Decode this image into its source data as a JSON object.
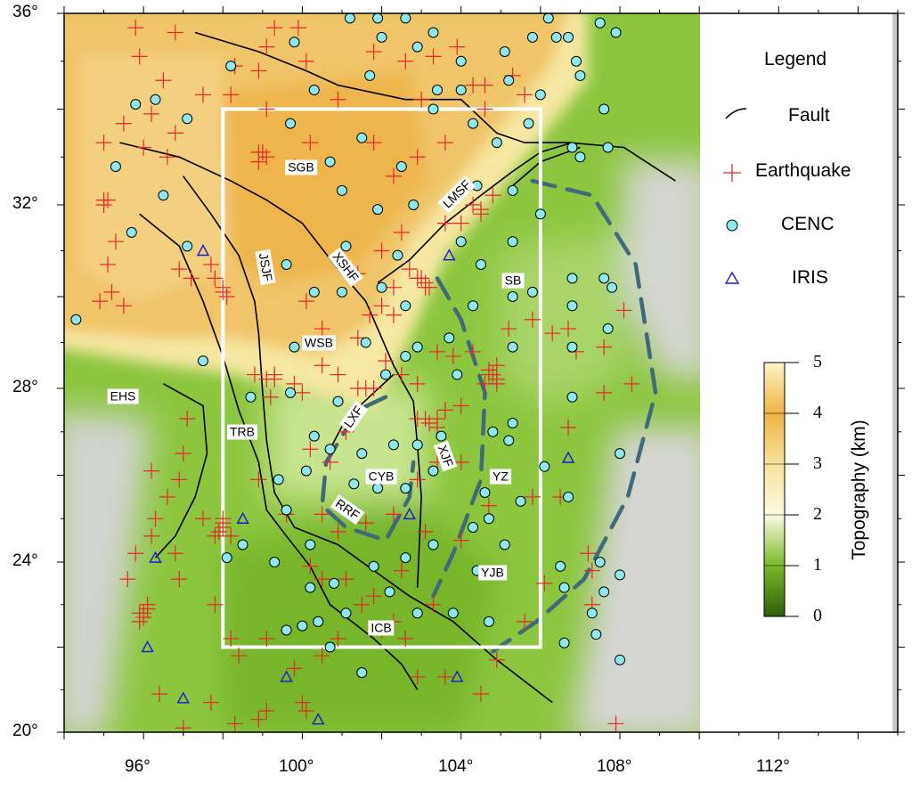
{
  "legend": {
    "title": "Legend",
    "items": [
      {
        "label": "Fault",
        "symbol": "black-arc"
      },
      {
        "label": "Earthquake",
        "symbol": "red-plus"
      },
      {
        "label": "CENC",
        "symbol": "cyan-circle"
      },
      {
        "label": "IRIS",
        "symbol": "blue-triangle"
      }
    ]
  },
  "colorbar": {
    "title": "Topography (km)",
    "ticks": [
      "0",
      "1",
      "2",
      "3",
      "4",
      "5"
    ],
    "colors": [
      "#2f5e0a",
      "#7ab82a",
      "#fbfbe0",
      "#f7d98a",
      "#f0b040",
      "#fdf3c8"
    ]
  },
  "axes": {
    "lon_ticks": [
      "96°",
      "100°",
      "104°",
      "108°",
      "112°"
    ],
    "lat_ticks": [
      "20°",
      "24°",
      "28°",
      "32°",
      "36°"
    ],
    "lon_range": [
      94,
      115
    ],
    "lat_range": [
      20,
      36
    ],
    "map_lon_extent": [
      94,
      110
    ]
  },
  "colors": {
    "earthquake": "#e8262a",
    "cenc_fill": "#8fe8ef",
    "iris": "#1a1ad0",
    "region": "#ffffff",
    "dashed_zone": "#3f6a7a",
    "fault": "#000000"
  },
  "study_region": {
    "lon": [
      98,
      106
    ],
    "lat": [
      22,
      34
    ]
  },
  "labels": {
    "SGB": "SGB",
    "LMSF": "LMSF",
    "XSHF": "XSHF",
    "JSJF": "JSJF",
    "SB": "SB",
    "WSB": "WSB",
    "EHS": "EHS",
    "LXF": "LXF",
    "TRB": "TRB",
    "XJF": "XJF",
    "CYB": "CYB",
    "YZ": "YZ",
    "RRF": "RRF",
    "YJB": "YJB",
    "ICB": "ICB"
  },
  "faults": [
    [
      [
        97.3,
        35.6
      ],
      [
        98.9,
        35.2
      ],
      [
        100.1,
        34.8
      ],
      [
        100.9,
        34.5
      ],
      [
        102.6,
        34.2
      ],
      [
        103.4,
        34.2
      ],
      [
        104.0,
        34.2
      ],
      [
        104.9,
        33.5
      ],
      [
        105.6,
        33.3
      ],
      [
        106.7,
        33.3
      ],
      [
        108.1,
        33.2
      ],
      [
        109.4,
        32.5
      ]
    ],
    [
      [
        95.4,
        33.3
      ],
      [
        96.9,
        33.0
      ],
      [
        98.2,
        32.5
      ],
      [
        99.1,
        32.1
      ],
      [
        100.0,
        31.6
      ],
      [
        100.9,
        30.6
      ],
      [
        101.6,
        29.9
      ],
      [
        101.9,
        29.3
      ],
      [
        102.3,
        28.5
      ],
      [
        102.8,
        27.7
      ],
      [
        102.9,
        26.7
      ],
      [
        103.0,
        25.5
      ],
      [
        102.9,
        23.4
      ]
    ],
    [
      [
        101.9,
        30.3
      ],
      [
        102.7,
        30.8
      ],
      [
        103.6,
        31.6
      ],
      [
        104.5,
        32.2
      ],
      [
        105.3,
        32.7
      ],
      [
        106.0,
        33.1
      ],
      [
        106.8,
        33.3
      ]
    ],
    [
      [
        97.0,
        32.6
      ],
      [
        97.7,
        31.8
      ],
      [
        98.4,
        30.9
      ],
      [
        98.8,
        29.9
      ],
      [
        98.9,
        29.2
      ],
      [
        99.0,
        27.9
      ],
      [
        99.1,
        26.8
      ],
      [
        99.3,
        25.6
      ],
      [
        99.8,
        24.8
      ],
      [
        100.9,
        24.4
      ],
      [
        101.8,
        23.8
      ],
      [
        102.7,
        23.2
      ],
      [
        103.8,
        22.6
      ],
      [
        104.9,
        21.7
      ],
      [
        106.3,
        20.7
      ]
    ],
    [
      [
        95.9,
        31.8
      ],
      [
        96.9,
        31.1
      ],
      [
        97.5,
        29.9
      ],
      [
        98.0,
        28.7
      ],
      [
        98.4,
        27.5
      ],
      [
        98.9,
        26.3
      ],
      [
        99.1,
        25.2
      ],
      [
        99.6,
        24.6
      ],
      [
        100.2,
        23.9
      ],
      [
        100.7,
        23.0
      ],
      [
        101.8,
        22.2
      ],
      [
        102.5,
        21.6
      ],
      [
        102.9,
        21.0
      ]
    ],
    [
      [
        96.5,
        28.1
      ],
      [
        97.5,
        27.6
      ],
      [
        97.6,
        26.5
      ],
      [
        97.3,
        25.5
      ],
      [
        96.8,
        24.6
      ],
      [
        96.3,
        24.1
      ]
    ],
    [
      [
        100.7,
        26.6
      ],
      [
        101.1,
        27.3
      ],
      [
        101.8,
        27.9
      ],
      [
        102.3,
        28.3
      ]
    ],
    [
      [
        105.3,
        32.4
      ],
      [
        106.0,
        32.9
      ],
      [
        107.0,
        33.2
      ]
    ]
  ],
  "dashed_zones": [
    [
      [
        105.8,
        32.5
      ],
      [
        107.3,
        32.2
      ],
      [
        108.4,
        30.7
      ],
      [
        108.9,
        27.9
      ],
      [
        108.2,
        25.5
      ],
      [
        107.1,
        23.6
      ],
      [
        105.9,
        22.6
      ],
      [
        104.8,
        21.9
      ]
    ],
    [
      [
        103.4,
        30.4
      ],
      [
        104.0,
        29.5
      ],
      [
        104.6,
        27.9
      ],
      [
        104.5,
        25.9
      ],
      [
        103.8,
        24.2
      ],
      [
        103.3,
        23.2
      ]
    ],
    [
      [
        102.1,
        27.8
      ],
      [
        101.4,
        27.5
      ],
      [
        100.6,
        26.3
      ],
      [
        100.5,
        25.3
      ],
      [
        101.1,
        24.8
      ],
      [
        102.1,
        24.5
      ],
      [
        102.7,
        25.5
      ],
      [
        102.8,
        26.3
      ]
    ]
  ],
  "earthquakes": [
    [
      95.8,
      35.7
    ],
    [
      96.8,
      35.6
    ],
    [
      95.9,
      35.1
    ],
    [
      96.5,
      34.6
    ],
    [
      97.5,
      34.3
    ],
    [
      98.2,
      34.3
    ],
    [
      99.1,
      35.3
    ],
    [
      99.3,
      35.7
    ],
    [
      99.9,
      35.7
    ],
    [
      98.3,
      34.9
    ],
    [
      98.9,
      34.8
    ],
    [
      100.1,
      35.0
    ],
    [
      101.8,
      35.2
    ],
    [
      102.6,
      35.0
    ],
    [
      103.3,
      35.1
    ],
    [
      103.9,
      35.3
    ],
    [
      104.3,
      34.5
    ],
    [
      104.6,
      34.0
    ],
    [
      105.3,
      34.7
    ],
    [
      105.6,
      34.3
    ],
    [
      100.9,
      34.2
    ],
    [
      103.0,
      34.2
    ],
    [
      95.5,
      33.7
    ],
    [
      96.2,
      33.9
    ],
    [
      96.8,
      33.5
    ],
    [
      96.0,
      33.2
    ],
    [
      96.6,
      33.0
    ],
    [
      95.0,
      33.3
    ],
    [
      95.1,
      32.1
    ],
    [
      95.0,
      32.0
    ],
    [
      95.3,
      31.2
    ],
    [
      95.1,
      30.7
    ],
    [
      95.2,
      30.1
    ],
    [
      95.5,
      29.8
    ],
    [
      94.9,
      29.9
    ],
    [
      96.9,
      30.6
    ],
    [
      97.2,
      30.4
    ],
    [
      97.8,
      30.4
    ],
    [
      98.0,
      30.2
    ],
    [
      97.7,
      30.7
    ],
    [
      98.9,
      33.1
    ],
    [
      98.9,
      32.9
    ],
    [
      99.1,
      34.0
    ],
    [
      99.8,
      32.8
    ],
    [
      100.2,
      33.3
    ],
    [
      101.8,
      33.3
    ],
    [
      102.3,
      32.6
    ],
    [
      102.9,
      33.0
    ],
    [
      103.6,
      33.3
    ],
    [
      104.3,
      32.0
    ],
    [
      104.5,
      31.8
    ],
    [
      104.8,
      32.2
    ],
    [
      104.0,
      31.6
    ],
    [
      103.6,
      31.6
    ],
    [
      102.9,
      30.4
    ],
    [
      103.1,
      30.2
    ],
    [
      102.7,
      30.6
    ],
    [
      102.3,
      30.2
    ],
    [
      102.0,
      29.8
    ],
    [
      101.7,
      29.6
    ],
    [
      101.4,
      29.1
    ],
    [
      100.9,
      28.3
    ],
    [
      101.4,
      28.0
    ],
    [
      101.6,
      28.0
    ],
    [
      102.1,
      28.6
    ],
    [
      102.5,
      28.3
    ],
    [
      102.9,
      28.1
    ],
    [
      103.8,
      28.7
    ],
    [
      104.3,
      28.8
    ],
    [
      104.7,
      28.3
    ],
    [
      104.8,
      28.3
    ],
    [
      104.9,
      28.5
    ],
    [
      104.9,
      28.1
    ],
    [
      104.6,
      28.1
    ],
    [
      105.2,
      29.3
    ],
    [
      105.8,
      29.5
    ],
    [
      106.3,
      29.2
    ],
    [
      106.7,
      29.3
    ],
    [
      106.9,
      28.8
    ],
    [
      103.4,
      28.8
    ],
    [
      102.9,
      27.3
    ],
    [
      103.1,
      27.3
    ],
    [
      103.4,
      27.3
    ],
    [
      103.6,
      27.5
    ],
    [
      104.0,
      27.6
    ],
    [
      98.8,
      28.3
    ],
    [
      99.1,
      28.2
    ],
    [
      99.3,
      28.3
    ],
    [
      99.2,
      27.8
    ],
    [
      99.8,
      28.1
    ],
    [
      100.0,
      27.9
    ],
    [
      100.5,
      28.5
    ],
    [
      100.1,
      29.9
    ],
    [
      100.5,
      29.3
    ],
    [
      101.4,
      30.5
    ],
    [
      102.0,
      31.0
    ],
    [
      102.5,
      31.4
    ],
    [
      101.1,
      27.0
    ],
    [
      100.7,
      26.3
    ],
    [
      100.2,
      26.6
    ],
    [
      98.9,
      25.9
    ],
    [
      99.6,
      25.1
    ],
    [
      100.5,
      25.1
    ],
    [
      100.9,
      24.7
    ],
    [
      101.6,
      24.9
    ],
    [
      101.1,
      23.6
    ],
    [
      100.5,
      23.6
    ],
    [
      100.2,
      23.9
    ],
    [
      101.5,
      23.0
    ],
    [
      101.8,
      23.2
    ],
    [
      102.3,
      22.6
    ],
    [
      100.9,
      22.2
    ],
    [
      100.5,
      21.8
    ],
    [
      99.8,
      21.5
    ],
    [
      100.0,
      20.7
    ],
    [
      100.1,
      20.5
    ],
    [
      99.1,
      20.5
    ],
    [
      98.9,
      20.3
    ],
    [
      98.3,
      20.2
    ],
    [
      97.7,
      20.7
    ],
    [
      97.0,
      20.1
    ],
    [
      96.4,
      20.9
    ],
    [
      96.0,
      22.8
    ],
    [
      95.9,
      22.8
    ],
    [
      96.1,
      23.0
    ],
    [
      95.6,
      23.6
    ],
    [
      95.8,
      24.2
    ],
    [
      96.2,
      24.6
    ],
    [
      96.3,
      25.0
    ],
    [
      96.6,
      25.5
    ],
    [
      96.9,
      25.9
    ],
    [
      97.0,
      26.5
    ],
    [
      97.1,
      27.3
    ],
    [
      97.5,
      25.0
    ],
    [
      97.8,
      24.6
    ],
    [
      98.0,
      24.8
    ],
    [
      98.2,
      24.6
    ],
    [
      98.0,
      25.0
    ],
    [
      96.9,
      23.6
    ],
    [
      96.8,
      24.2
    ],
    [
      96.2,
      26.1
    ],
    [
      97.8,
      23.0
    ],
    [
      98.2,
      22.2
    ],
    [
      98.4,
      21.8
    ],
    [
      99.1,
      22.2
    ],
    [
      102.0,
      22.4
    ],
    [
      102.6,
      22.2
    ],
    [
      102.9,
      21.3
    ],
    [
      103.6,
      21.3
    ],
    [
      104.5,
      20.9
    ],
    [
      104.9,
      21.7
    ],
    [
      105.6,
      22.6
    ],
    [
      106.1,
      23.5
    ],
    [
      105.8,
      25.5
    ],
    [
      106.5,
      25.5
    ],
    [
      106.7,
      27.1
    ],
    [
      107.2,
      24.2
    ],
    [
      107.3,
      23.8
    ],
    [
      107.9,
      20.2
    ],
    [
      108.3,
      28.1
    ],
    [
      107.6,
      28.9
    ],
    [
      108.1,
      29.7
    ],
    [
      107.6,
      27.9
    ],
    [
      103.1,
      24.7
    ],
    [
      104.0,
      24.5
    ],
    [
      104.7,
      25.3
    ],
    [
      104.0,
      26.3
    ],
    [
      103.4,
      26.3
    ],
    [
      102.9,
      25.9
    ],
    [
      102.3,
      25.1
    ],
    [
      102.5,
      23.8
    ],
    [
      103.3,
      23.0
    ],
    [
      107.3,
      23.0
    ],
    [
      103.1,
      30.3
    ],
    [
      103.0,
      30.4
    ],
    [
      103.2,
      30.2
    ],
    [
      104.7,
      28.4
    ],
    [
      104.9,
      28.2
    ],
    [
      96.0,
      22.7
    ],
    [
      95.9,
      22.6
    ],
    [
      96.1,
      22.9
    ],
    [
      98.0,
      24.9
    ],
    [
      97.9,
      24.7
    ],
    [
      103.2,
      27.2
    ],
    [
      103.4,
      27.1
    ],
    [
      104.5,
      31.9
    ],
    [
      104.6,
      34.5
    ],
    [
      99.1,
      33.0
    ],
    [
      99.0,
      33.1
    ],
    [
      95.0,
      32.1
    ],
    [
      98.0,
      30.1
    ],
    [
      98.1,
      30.0
    ],
    [
      99.3,
      28.2
    ],
    [
      102.3,
      29.6
    ],
    [
      101.8,
      28.0
    ]
  ],
  "cenc_stations": [
    [
      98.2,
      34.9
    ],
    [
      99.8,
      35.4
    ],
    [
      101.2,
      35.9
    ],
    [
      101.9,
      35.9
    ],
    [
      102.6,
      35.9
    ],
    [
      103.3,
      35.6
    ],
    [
      102.0,
      35.5
    ],
    [
      102.9,
      35.3
    ],
    [
      101.7,
      34.7
    ],
    [
      104.0,
      35.0
    ],
    [
      105.1,
      35.2
    ],
    [
      105.8,
      35.5
    ],
    [
      106.2,
      35.9
    ],
    [
      106.4,
      35.5
    ],
    [
      106.7,
      35.5
    ],
    [
      106.9,
      35.0
    ],
    [
      107.5,
      35.8
    ],
    [
      107.9,
      35.6
    ],
    [
      107.0,
      34.7
    ],
    [
      106.0,
      34.3
    ],
    [
      105.2,
      34.6
    ],
    [
      104.0,
      34.4
    ],
    [
      100.3,
      34.4
    ],
    [
      103.4,
      34.4
    ],
    [
      97.1,
      33.8
    ],
    [
      99.7,
      33.7
    ],
    [
      101.5,
      33.4
    ],
    [
      102.5,
      32.8
    ],
    [
      100.7,
      32.9
    ],
    [
      103.3,
      34.0
    ],
    [
      104.3,
      33.7
    ],
    [
      104.9,
      33.3
    ],
    [
      105.7,
      33.7
    ],
    [
      106.8,
      33.2
    ],
    [
      107.0,
      33.0
    ],
    [
      107.6,
      34.0
    ],
    [
      107.7,
      33.2
    ],
    [
      95.3,
      32.8
    ],
    [
      96.5,
      32.2
    ],
    [
      95.7,
      31.4
    ],
    [
      97.1,
      31.1
    ],
    [
      101.0,
      32.3
    ],
    [
      101.9,
      31.9
    ],
    [
      102.8,
      32.0
    ],
    [
      104.4,
      32.4
    ],
    [
      105.3,
      32.3
    ],
    [
      106.0,
      31.8
    ],
    [
      105.3,
      31.2
    ],
    [
      104.0,
      31.2
    ],
    [
      104.5,
      30.7
    ],
    [
      102.4,
      30.9
    ],
    [
      101.1,
      31.1
    ],
    [
      99.6,
      30.7
    ],
    [
      100.3,
      30.1
    ],
    [
      101.0,
      30.1
    ],
    [
      102.0,
      30.2
    ],
    [
      102.6,
      29.8
    ],
    [
      104.3,
      29.8
    ],
    [
      105.3,
      30.0
    ],
    [
      105.8,
      30.1
    ],
    [
      106.8,
      30.4
    ],
    [
      107.6,
      30.4
    ],
    [
      107.8,
      30.2
    ],
    [
      107.7,
      29.3
    ],
    [
      106.8,
      29.8
    ],
    [
      106.8,
      28.9
    ],
    [
      105.3,
      28.9
    ],
    [
      103.7,
      29.1
    ],
    [
      102.9,
      28.9
    ],
    [
      103.9,
      28.3
    ],
    [
      99.8,
      28.9
    ],
    [
      101.6,
      29.0
    ],
    [
      102.1,
      28.3
    ],
    [
      102.6,
      28.7
    ],
    [
      97.5,
      28.6
    ],
    [
      98.7,
      27.8
    ],
    [
      99.7,
      27.9
    ],
    [
      100.9,
      27.7
    ],
    [
      100.3,
      26.9
    ],
    [
      100.7,
      26.6
    ],
    [
      101.5,
      26.5
    ],
    [
      102.3,
      26.7
    ],
    [
      102.9,
      26.7
    ],
    [
      103.5,
      26.9
    ],
    [
      104.8,
      27.0
    ],
    [
      105.3,
      27.2
    ],
    [
      106.8,
      27.8
    ],
    [
      108.0,
      26.5
    ],
    [
      106.1,
      26.2
    ],
    [
      105.2,
      26.8
    ],
    [
      100.1,
      26.1
    ],
    [
      101.3,
      25.8
    ],
    [
      101.9,
      25.7
    ],
    [
      102.6,
      25.7
    ],
    [
      103.3,
      26.1
    ],
    [
      104.6,
      25.6
    ],
    [
      104.7,
      25.0
    ],
    [
      105.5,
      25.4
    ],
    [
      106.7,
      25.5
    ],
    [
      99.4,
      25.9
    ],
    [
      99.6,
      25.2
    ],
    [
      98.5,
      24.4
    ],
    [
      100.2,
      24.4
    ],
    [
      99.3,
      24.0
    ],
    [
      98.1,
      24.1
    ],
    [
      100.2,
      23.4
    ],
    [
      100.8,
      23.5
    ],
    [
      101.8,
      23.9
    ],
    [
      102.6,
      24.1
    ],
    [
      103.3,
      24.4
    ],
    [
      104.3,
      24.8
    ],
    [
      104.4,
      23.8
    ],
    [
      105.1,
      24.4
    ],
    [
      106.5,
      23.9
    ],
    [
      106.6,
      23.4
    ],
    [
      107.5,
      24.0
    ],
    [
      107.6,
      23.3
    ],
    [
      108.0,
      23.7
    ],
    [
      107.3,
      22.8
    ],
    [
      107.4,
      22.3
    ],
    [
      106.6,
      22.1
    ],
    [
      108.0,
      21.7
    ],
    [
      104.7,
      22.6
    ],
    [
      103.8,
      22.8
    ],
    [
      102.9,
      22.8
    ],
    [
      102.2,
      23.3
    ],
    [
      101.1,
      22.8
    ],
    [
      100.4,
      22.6
    ],
    [
      100.0,
      22.5
    ],
    [
      99.6,
      22.4
    ],
    [
      100.7,
      22.0
    ],
    [
      101.5,
      21.4
    ],
    [
      94.3,
      29.5
    ],
    [
      95.8,
      34.1
    ],
    [
      96.3,
      34.2
    ]
  ],
  "iris_stations": [
    [
      97.5,
      31.0
    ],
    [
      103.7,
      30.9
    ],
    [
      106.7,
      26.4
    ],
    [
      98.5,
      25.0
    ],
    [
      102.7,
      25.1
    ],
    [
      96.3,
      24.1
    ],
    [
      96.1,
      22.0
    ],
    [
      97.0,
      20.8
    ],
    [
      99.6,
      21.3
    ],
    [
      100.4,
      20.3
    ],
    [
      103.9,
      21.3
    ]
  ]
}
